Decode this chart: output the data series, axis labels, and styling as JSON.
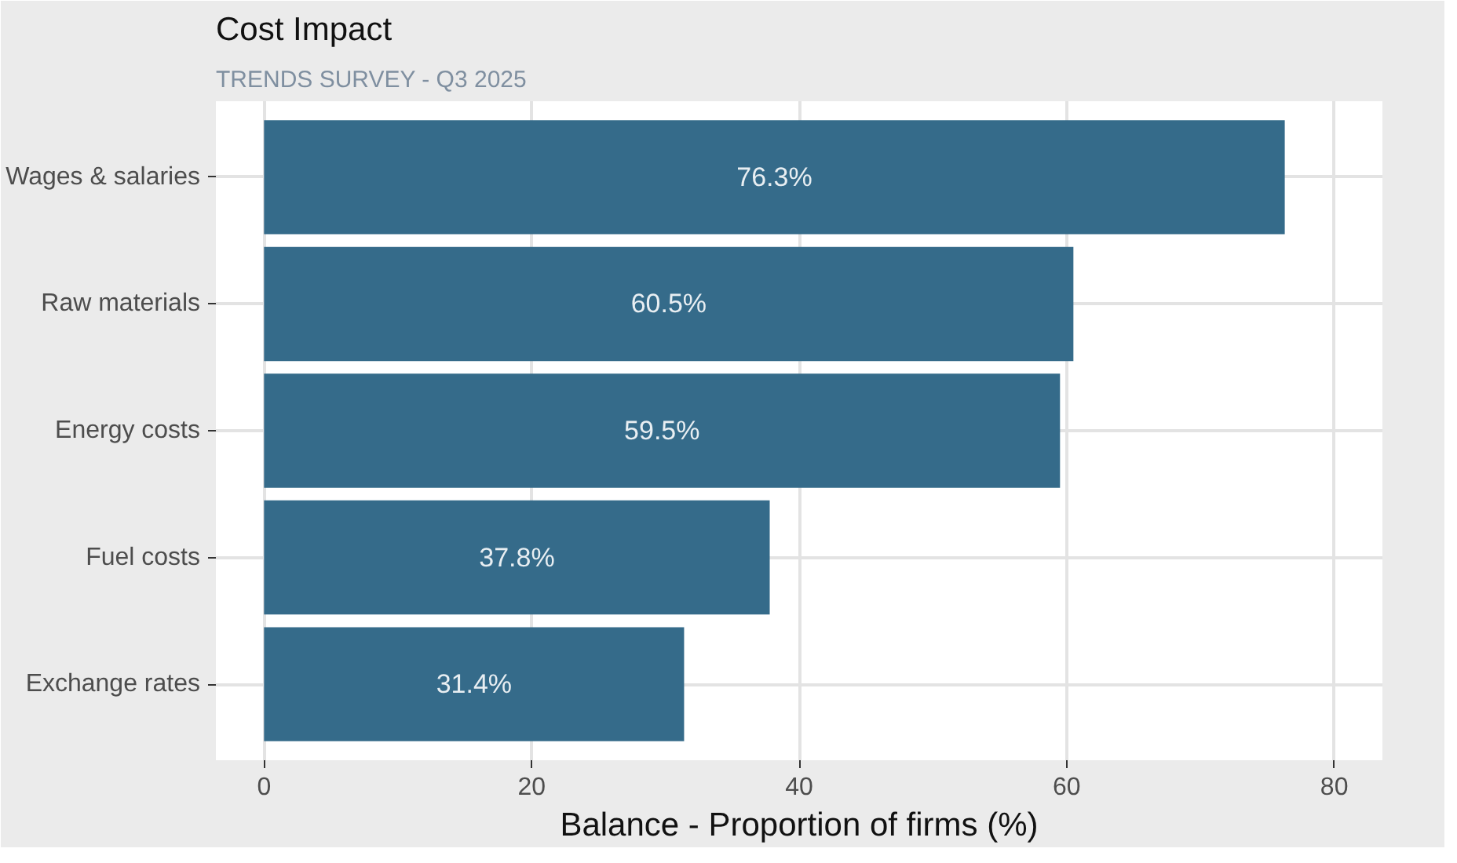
{
  "chart_data": {
    "type": "bar",
    "orientation": "horizontal",
    "title": "Cost Impact",
    "subtitle": "TRENDS SURVEY - Q3 2025",
    "xlabel": "Balance - Proportion of firms (%)",
    "categories": [
      "Wages & salaries",
      "Raw materials",
      "Energy costs",
      "Fuel costs",
      "Exchange rates"
    ],
    "values": [
      76.3,
      60.5,
      59.5,
      37.8,
      31.4
    ],
    "value_labels": [
      "76.3%",
      "60.5%",
      "59.5%",
      "37.8%",
      "31.4%"
    ],
    "color": "#356b8a",
    "xlim": [
      -3.6,
      83.6
    ],
    "xticks": [
      0,
      20,
      40,
      60,
      80
    ],
    "grid": true
  }
}
